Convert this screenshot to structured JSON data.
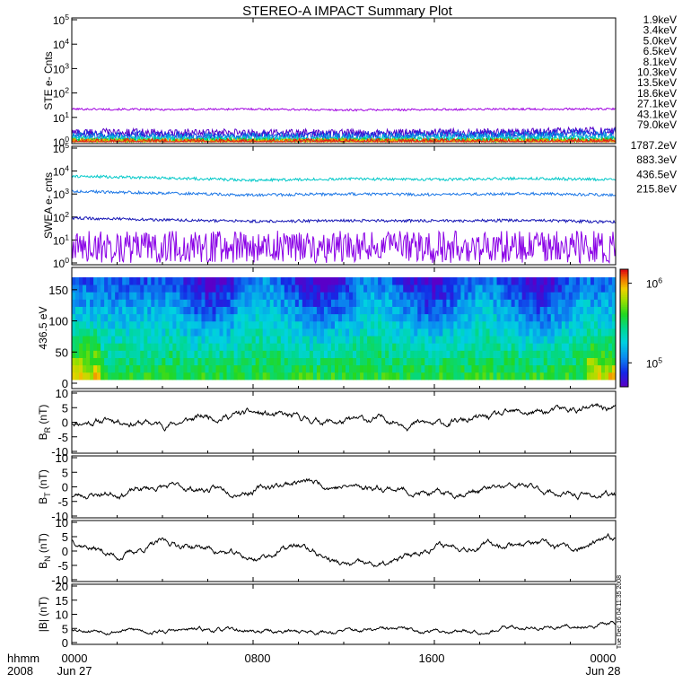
{
  "title": "STEREO-A IMPACT Summary Plot",
  "footer": {
    "row_label": "hhmm",
    "year_label": "2008",
    "time_ticks": [
      "0000",
      "0800",
      "1600",
      "0000"
    ],
    "date_labels": [
      "Jun 27",
      "Jun 28"
    ],
    "timestamp": "Tue Dec 16 04:11:35 2008"
  },
  "colors": {
    "axes": "#000000",
    "trace": "#000000"
  },
  "chart_data": [
    {
      "type": "line",
      "ylabel": "STE e- Cnts",
      "yscale": "log",
      "ylim": [
        1,
        100000
      ],
      "ytick_labels": [
        "10^0",
        "10^1",
        "10^2",
        "10^3",
        "10^4",
        "10^5"
      ],
      "legend_placement": "right",
      "x": [
        0,
        4,
        8,
        12,
        16,
        20,
        24
      ],
      "series": [
        {
          "name": "1.9keV",
          "color": "#a000e0",
          "values": [
            22,
            21,
            22,
            20,
            21,
            22,
            22
          ]
        },
        {
          "name": "3.4keV",
          "color": "#5a00c8",
          "values": [
            2.4,
            2.3,
            2.2,
            2.2,
            2.3,
            2.5,
            2.8
          ]
        },
        {
          "name": "5.0keV",
          "color": "#1e2adc",
          "values": [
            2.0,
            1.9,
            1.8,
            1.9,
            2.0,
            2.1,
            2.4
          ]
        },
        {
          "name": "6.5keV",
          "color": "#0090e0",
          "values": [
            1.6,
            1.5,
            1.5,
            1.5,
            1.6,
            1.7,
            1.8
          ]
        },
        {
          "name": "8.1keV",
          "color": "#00d2d2",
          "values": [
            1.3,
            1.3,
            1.25,
            1.3,
            1.3,
            1.3,
            1.4
          ]
        },
        {
          "name": "10.3keV",
          "color": "#00d090",
          "values": [
            1.15,
            1.1,
            1.1,
            1.1,
            1.15,
            1.15,
            1.2
          ]
        },
        {
          "name": "13.5keV",
          "color": "#10c010",
          "values": [
            1.05,
            1.05,
            1.05,
            1.05,
            1.05,
            1.05,
            1.1
          ]
        },
        {
          "name": "18.6keV",
          "color": "#90d800",
          "values": [
            1,
            1,
            1,
            1,
            1,
            1,
            1
          ]
        },
        {
          "name": "27.1keV",
          "color": "#e8c800",
          "values": [
            1,
            1,
            1,
            1,
            1,
            1,
            1
          ]
        },
        {
          "name": "43.1keV",
          "color": "#f07800",
          "values": [
            1,
            1,
            1,
            1,
            1,
            1,
            1
          ]
        },
        {
          "name": "79.0keV",
          "color": "#e01818",
          "values": [
            1,
            1,
            1,
            1,
            1,
            1,
            1
          ]
        }
      ]
    },
    {
      "type": "line",
      "ylabel": "SWEA e- cnts",
      "yscale": "log",
      "ylim": [
        1,
        100000
      ],
      "ytick_labels": [
        "10^0",
        "10^1",
        "10^2",
        "10^3",
        "10^4",
        "10^5"
      ],
      "legend_placement": "right",
      "x": [
        0,
        4,
        8,
        12,
        16,
        20,
        24
      ],
      "series": [
        {
          "name": "1787.2eV",
          "color": "#8a00e6",
          "values": [
            5,
            5,
            5,
            5,
            5,
            5,
            5
          ]
        },
        {
          "name": "883.3eV",
          "color": "#1414b4",
          "values": [
            90,
            75,
            65,
            70,
            68,
            72,
            60
          ]
        },
        {
          "name": "436.5eV",
          "color": "#1e78e6",
          "values": [
            1300,
            1100,
            900,
            1000,
            950,
            1050,
            900
          ]
        },
        {
          "name": "215.8eV",
          "color": "#00c8c8",
          "values": [
            6000,
            5000,
            4000,
            4500,
            4300,
            4800,
            4200
          ]
        }
      ]
    },
    {
      "type": "heatmap",
      "ylabel": "436.5 eV",
      "ylim": [
        0,
        180
      ],
      "ytick_labels": [
        "0",
        "50",
        "100",
        "150"
      ],
      "colorbar": {
        "scale": "log",
        "range": [
          50000,
          1500000
        ],
        "tick_labels": [
          "10^5",
          "10^6"
        ]
      }
    },
    {
      "type": "line",
      "ylabel": "B_R (nT)",
      "ylabel_parts": [
        "B",
        "R",
        "(nT)"
      ],
      "ylim": [
        -10,
        10
      ],
      "ytick_labels": [
        "10",
        "5",
        "0",
        "-5",
        "-10"
      ],
      "x": [
        0,
        2,
        4,
        6,
        8,
        10,
        12,
        14,
        16,
        18,
        20,
        22,
        24
      ],
      "values": [
        0,
        1,
        -1,
        2,
        3,
        1,
        0,
        1,
        -1,
        1,
        3,
        4,
        5
      ]
    },
    {
      "type": "line",
      "ylabel": "B_T (nT)",
      "ylabel_parts": [
        "B",
        "T",
        "(nT)"
      ],
      "ylim": [
        -10,
        10
      ],
      "ytick_labels": [
        "10",
        "5",
        "0",
        "-5",
        "-10"
      ],
      "x": [
        0,
        2,
        4,
        6,
        8,
        10,
        12,
        14,
        16,
        18,
        20,
        22,
        24
      ],
      "values": [
        -3,
        -2,
        0,
        -1,
        -1,
        2,
        0,
        0,
        -3,
        -1,
        0,
        -3,
        -3
      ]
    },
    {
      "type": "line",
      "ylabel": "B_N (nT)",
      "ylabel_parts": [
        "B",
        "N",
        "(nT)"
      ],
      "ylim": [
        -10,
        10
      ],
      "ytick_labels": [
        "10",
        "5",
        "0",
        "-5",
        "-10"
      ],
      "x": [
        0,
        2,
        4,
        6,
        8,
        10,
        12,
        14,
        16,
        18,
        20,
        22,
        24
      ],
      "values": [
        4,
        -2,
        3,
        1,
        -3,
        2,
        -5,
        -5,
        2,
        2,
        3,
        0,
        4
      ]
    },
    {
      "type": "line",
      "ylabel": "|B| (nT)",
      "ylim": [
        0,
        20
      ],
      "ytick_labels": [
        "20",
        "15",
        "10",
        "5",
        "0"
      ],
      "x": [
        0,
        2,
        4,
        6,
        8,
        10,
        12,
        14,
        16,
        18,
        20,
        22,
        24
      ],
      "values": [
        5,
        4.5,
        4,
        4.5,
        4,
        4,
        4,
        4.5,
        4,
        4.5,
        5.5,
        5.5,
        7
      ]
    }
  ]
}
